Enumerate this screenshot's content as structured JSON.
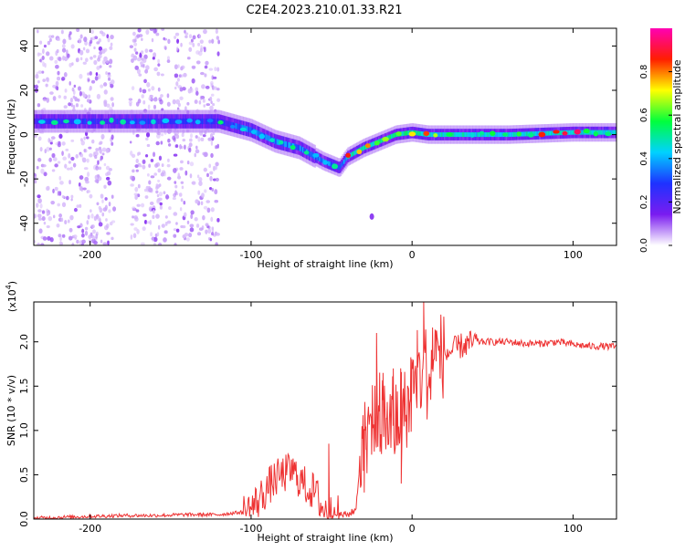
{
  "title": "C2E4.2023.210.01.33.R21",
  "colorbar": {
    "label": "Normalized spectral amplitude",
    "ticks": [
      "0.0",
      "0.2",
      "0.4",
      "0.6",
      "0.8"
    ],
    "range": [
      0,
      1
    ],
    "colors": [
      "#ffffff",
      "#7a1cf0",
      "#1e32ff",
      "#00d2ff",
      "#00ff3c",
      "#ffff00",
      "#ff1e00",
      "#ff00b4"
    ]
  },
  "chart_data": [
    {
      "type": "heatmap",
      "xlabel": "Height of straight line (km)",
      "ylabel": "Frequency (Hz)",
      "xlim": [
        -235,
        127
      ],
      "ylim": [
        -50,
        48
      ],
      "xticks": [
        -200,
        -100,
        0,
        100
      ],
      "xtick_labels": [
        "-200",
        "-100",
        "0",
        "100"
      ],
      "yticks": [
        40,
        20,
        0,
        -20,
        -40
      ],
      "ytick_labels": [
        "40",
        "20",
        "0",
        "-20",
        "-40"
      ],
      "ridge": [
        {
          "x": -235,
          "y": 6
        },
        {
          "x": -200,
          "y": 6
        },
        {
          "x": -150,
          "y": 6
        },
        {
          "x": -120,
          "y": 6
        },
        {
          "x": -100,
          "y": 2
        },
        {
          "x": -85,
          "y": -3
        },
        {
          "x": -70,
          "y": -6
        },
        {
          "x": -55,
          "y": -12
        },
        {
          "x": -45,
          "y": -15
        },
        {
          "x": -40,
          "y": -10
        },
        {
          "x": -30,
          "y": -6
        },
        {
          "x": -20,
          "y": -3
        },
        {
          "x": -10,
          "y": 0
        },
        {
          "x": 0,
          "y": 1
        },
        {
          "x": 10,
          "y": 0
        },
        {
          "x": 30,
          "y": 0
        },
        {
          "x": 60,
          "y": 0
        },
        {
          "x": 100,
          "y": 1
        },
        {
          "x": 127,
          "y": 1
        }
      ],
      "noise_bands": [
        [
          -235,
          -185
        ],
        [
          -175,
          -150
        ],
        [
          -148,
          -120
        ]
      ],
      "isolated_spot": {
        "x": -25,
        "y": -37
      }
    },
    {
      "type": "line",
      "xlabel": "Height of straight line (km)",
      "ylabel": "SNR (10 * v/v)",
      "y_multiplier": "(x10",
      "y_multiplier_exp": "4",
      "y_multiplier_close": ")",
      "xlim": [
        -235,
        127
      ],
      "ylim": [
        0,
        2.45
      ],
      "xticks": [
        -200,
        -100,
        0,
        100
      ],
      "xtick_labels": [
        "-200",
        "-100",
        "0",
        "100"
      ],
      "yticks": [
        0,
        0.5,
        1.0,
        1.5,
        2.0
      ],
      "ytick_labels": [
        "0.0",
        "0.5",
        "1.0",
        "1.5",
        "2.0"
      ],
      "color": "#ee3333",
      "series": [
        {
          "x": [
            -235,
            -220,
            -200,
            -180,
            -160,
            -140,
            -120,
            -105,
            -100,
            -95,
            -90,
            -85,
            -80,
            -75,
            -70,
            -65,
            -60,
            -55,
            -50,
            -45,
            -40,
            -35,
            -32,
            -30,
            -25,
            -20,
            -15,
            -10,
            -5,
            0,
            5,
            8,
            10,
            15,
            20,
            25,
            30,
            40,
            50,
            60,
            70,
            80,
            90,
            100,
            110,
            120,
            127
          ],
          "y": [
            0.01,
            0.02,
            0.03,
            0.04,
            0.04,
            0.05,
            0.05,
            0.08,
            0.12,
            0.22,
            0.35,
            0.45,
            0.5,
            0.55,
            0.45,
            0.35,
            0.3,
            0.1,
            0.06,
            0.05,
            0.05,
            0.1,
            0.7,
            0.9,
            1.0,
            1.2,
            1.05,
            1.1,
            1.2,
            1.45,
            1.6,
            1.75,
            1.55,
            1.85,
            1.85,
            1.9,
            1.95,
            2.0,
            2.0,
            2.0,
            1.98,
            1.98,
            2.0,
            1.97,
            1.95,
            1.95,
            1.94
          ],
          "spikes": [
            {
              "x": -52,
              "y": 0.85
            },
            {
              "x": -22,
              "y": 2.1
            },
            {
              "x": -18,
              "y": 1.65
            },
            {
              "x": -12,
              "y": 1.7
            },
            {
              "x": 7,
              "y": 2.45
            },
            {
              "x": -30,
              "y": 0.3
            },
            {
              "x": -7,
              "y": 0.4
            }
          ]
        }
      ]
    }
  ]
}
